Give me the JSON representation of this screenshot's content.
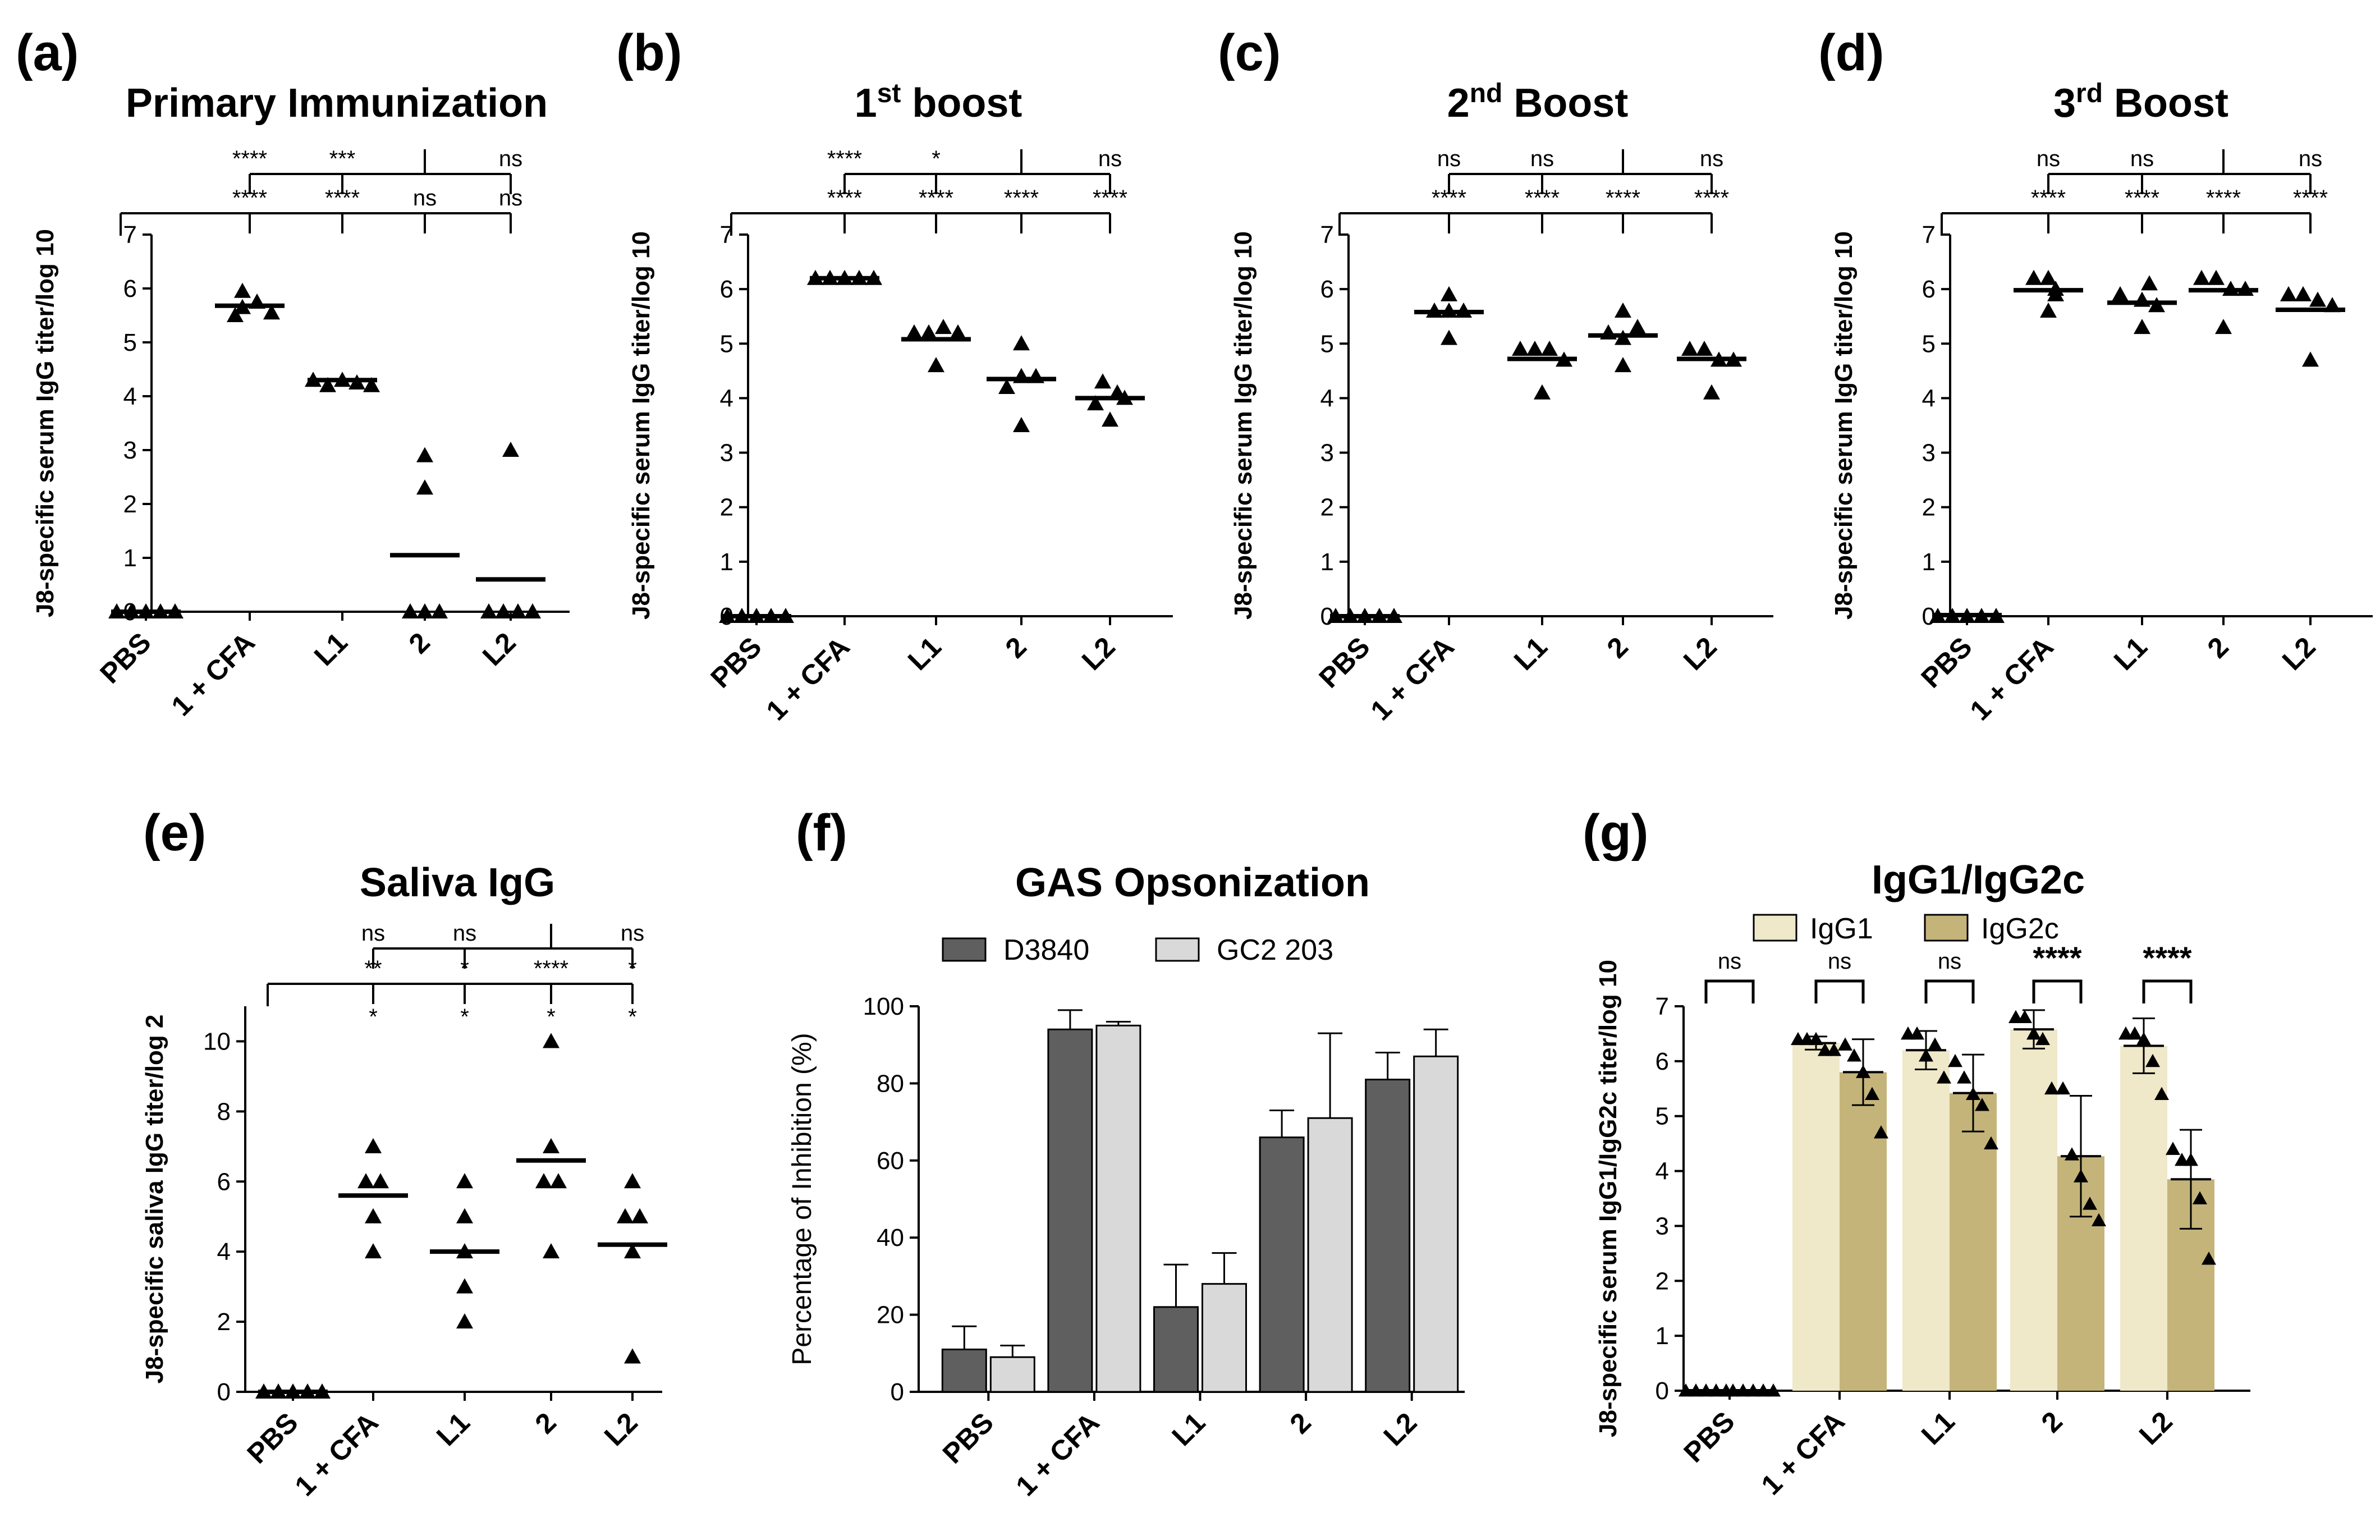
{
  "chart_data": [
    {
      "id": "a",
      "letter": "(a)",
      "type": "scatter",
      "title": "Primary Immunization",
      "ylabel": "J8-specific serum IgG titer/log 10",
      "categories": [
        "PBS",
        "1 + CFA",
        "L1",
        "2",
        "L2"
      ],
      "ylim": [
        0,
        7
      ],
      "yticks": [
        0,
        1,
        2,
        3,
        4,
        5,
        6,
        7
      ],
      "points": [
        [
          0,
          0,
          0,
          0,
          0
        ],
        [
          5.5,
          5.65,
          5.95,
          5.75,
          5.55
        ],
        [
          4.3,
          4.2,
          4.3,
          4.25,
          4.2
        ],
        [
          2.9,
          2.3,
          0,
          0,
          0
        ],
        [
          3.0,
          0,
          0,
          0,
          0
        ]
      ],
      "means": [
        0,
        5.68,
        4.3,
        1.05,
        0.6
      ],
      "sig_top": [
        "****",
        "***",
        "ns"
      ],
      "sig_bottom": [
        "****",
        "****",
        "ns",
        "ns"
      ]
    },
    {
      "id": "b",
      "letter": "(b)",
      "type": "scatter",
      "title": "1",
      "title_sup": "st",
      "title_rest": " boost",
      "ylabel": "J8-specific serum IgG titer/log 10",
      "categories": [
        "PBS",
        "1 + CFA",
        "L1",
        "2",
        "L2"
      ],
      "ylim": [
        0,
        7
      ],
      "yticks": [
        0,
        1,
        2,
        3,
        4,
        5,
        6,
        7
      ],
      "points": [
        [
          0,
          0,
          0,
          0,
          0
        ],
        [
          6.2,
          6.2,
          6.2,
          6.2,
          6.2
        ],
        [
          5.2,
          5.2,
          4.6,
          5.3,
          5.2
        ],
        [
          4.2,
          4.4,
          5.0,
          3.5,
          4.4
        ],
        [
          3.9,
          4.3,
          4.1,
          3.6,
          4.0
        ]
      ],
      "means": [
        0,
        6.2,
        5.08,
        4.35,
        4.0
      ],
      "sig_top": [
        "****",
        "*",
        "ns"
      ],
      "sig_bottom": [
        "****",
        "****",
        "****",
        "****"
      ]
    },
    {
      "id": "c",
      "letter": "(c)",
      "type": "scatter",
      "title": "2",
      "title_sup": "nd",
      "title_rest": " Boost",
      "ylabel": "J8-specific serum IgG titer/log 10",
      "categories": [
        "PBS",
        "1 + CFA",
        "L1",
        "2",
        "L2"
      ],
      "ylim": [
        0,
        7
      ],
      "yticks": [
        0,
        1,
        2,
        3,
        4,
        5,
        6,
        7
      ],
      "points": [
        [
          0,
          0,
          0,
          0,
          0
        ],
        [
          5.6,
          5.9,
          5.6,
          5.1,
          5.6
        ],
        [
          4.9,
          4.9,
          4.1,
          4.9,
          4.7
        ],
        [
          5.6,
          5.2,
          5.1,
          4.6,
          5.3
        ],
        [
          4.9,
          4.9,
          4.1,
          4.7,
          4.7
        ]
      ],
      "means": [
        0,
        5.58,
        4.72,
        5.15,
        4.72
      ],
      "sig_top": [
        "ns",
        "ns",
        "ns"
      ],
      "sig_bottom": [
        "****",
        "****",
        "****",
        "****"
      ]
    },
    {
      "id": "d",
      "letter": "(d)",
      "type": "scatter",
      "title": "3",
      "title_sup": "rd",
      "title_rest": " Boost",
      "ylabel": "J8-specific serum IgG titer/log 10",
      "categories": [
        "PBS",
        "1 + CFA",
        "L1",
        "2",
        "L2"
      ],
      "ylim": [
        0,
        7
      ],
      "yticks": [
        0,
        1,
        2,
        3,
        4,
        5,
        6,
        7
      ],
      "points": [
        [
          0,
          0,
          0,
          0,
          0
        ],
        [
          6.2,
          6.2,
          5.6,
          6.0,
          5.9
        ],
        [
          5.9,
          5.8,
          5.3,
          5.7,
          6.1
        ],
        [
          6.2,
          6.2,
          5.3,
          6.0,
          6.0
        ],
        [
          5.9,
          5.9,
          4.7,
          5.8,
          5.7
        ]
      ],
      "means": [
        0.02,
        5.98,
        5.75,
        5.98,
        5.62
      ],
      "sig_top": [
        "ns",
        "ns",
        "ns"
      ],
      "sig_bottom": [
        "****",
        "****",
        "****",
        "****"
      ]
    },
    {
      "id": "e",
      "letter": "(e)",
      "type": "scatter",
      "title": "Saliva IgG",
      "ylabel": "J8-specific saliva IgG titer/log 2",
      "categories": [
        "PBS",
        "1 + CFA",
        "L1",
        "2",
        "L2"
      ],
      "ylim": [
        0,
        11
      ],
      "yticks": [
        0,
        2,
        4,
        6,
        8,
        10
      ],
      "points": [
        [
          0,
          0,
          0,
          0,
          0
        ],
        [
          7,
          6,
          6,
          5,
          4
        ],
        [
          6,
          5,
          4,
          3,
          2
        ],
        [
          10,
          7,
          6,
          6,
          4
        ],
        [
          6,
          5,
          5,
          4,
          1
        ]
      ],
      "means": [
        0,
        5.6,
        4.0,
        6.6,
        4.2
      ],
      "sig_top": [
        "ns",
        "ns",
        "ns"
      ],
      "sig_bottom": [
        "**",
        "*",
        "****",
        "*"
      ],
      "sig_vs_pbs": [
        "*",
        "*",
        "*",
        "*"
      ]
    },
    {
      "id": "f",
      "letter": "(f)",
      "type": "bar",
      "title": "GAS Opsonization",
      "ylabel": "Percentage of Inhibition (%)",
      "categories": [
        "PBS",
        "1 + CFA",
        "L1",
        "2",
        "L2"
      ],
      "ylim": [
        0,
        100
      ],
      "yticks": [
        0,
        20,
        40,
        60,
        80,
        100
      ],
      "series": [
        {
          "name": "D3840",
          "color": "#5f5f5f",
          "values": [
            11,
            94,
            22,
            66,
            81
          ],
          "errors": [
            6,
            5,
            11,
            7,
            7
          ]
        },
        {
          "name": "GC2 203",
          "color": "#d9d9d9",
          "values": [
            9,
            95,
            28,
            71,
            87
          ],
          "errors": [
            3,
            1,
            8,
            22,
            7
          ]
        }
      ]
    },
    {
      "id": "g",
      "letter": "(g)",
      "type": "bar",
      "title": "IgG1/IgG2c",
      "ylabel": "J8-specific serum  IgG1/IgG2c titer/log 10",
      "categories": [
        "PBS",
        "1 + CFA",
        "L1",
        "2",
        "L2"
      ],
      "ylim": [
        0,
        7
      ],
      "yticks": [
        0,
        1,
        2,
        3,
        4,
        5,
        6,
        7
      ],
      "series": [
        {
          "name": "IgG1",
          "color": "#efe8c9",
          "values": [
            0,
            6.33,
            6.2,
            6.58,
            6.28
          ],
          "errors": [
            0,
            0.12,
            0.35,
            0.35,
            0.5
          ],
          "points": [
            [
              0,
              0,
              0,
              0,
              0
            ],
            [
              6.4,
              6.4,
              6.4,
              6.2,
              6.2
            ],
            [
              6.5,
              6.5,
              6.1,
              6.3,
              5.7
            ],
            [
              6.8,
              6.8,
              6.5,
              6.4,
              5.5
            ],
            [
              6.5,
              6.5,
              6.4,
              6.0,
              5.4
            ]
          ]
        },
        {
          "name": "IgG2c",
          "color": "#c4b47a",
          "values": [
            0,
            5.8,
            5.42,
            4.27,
            3.85
          ],
          "errors": [
            0,
            0.6,
            0.7,
            1.1,
            0.9
          ],
          "points": [
            [
              0,
              0,
              0,
              0,
              0
            ],
            [
              6.3,
              6.1,
              5.8,
              5.4,
              4.7
            ],
            [
              6.0,
              5.7,
              5.4,
              5.2,
              4.5
            ],
            [
              5.5,
              4.3,
              3.9,
              3.4,
              3.1
            ],
            [
              4.4,
              4.2,
              4.2,
              3.5,
              2.4
            ]
          ]
        }
      ],
      "sig": [
        "ns",
        "ns",
        "ns",
        "****",
        "****"
      ]
    }
  ]
}
